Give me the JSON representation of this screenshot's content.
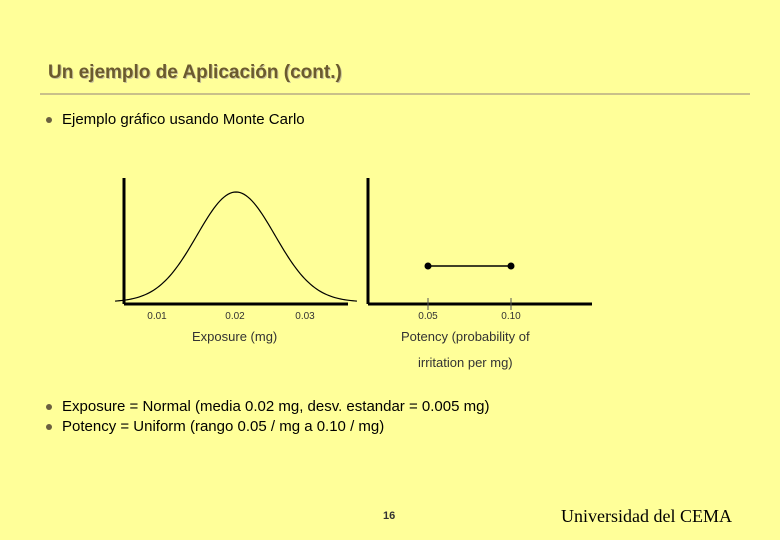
{
  "slide": {
    "title": "Un ejemplo de Aplicación (cont.)",
    "bullets_top": [
      "Ejemplo gráfico usando Monte Carlo"
    ],
    "bullets_bottom": [
      "Exposure = Normal (media 0.02 mg, desv. estandar = 0.005 mg)",
      "Potency = Uniform (rango 0.05 / mg a 0.10 / mg)"
    ],
    "page_number": "16",
    "organization": "Universidad del CEMA"
  },
  "exposure_plot": {
    "ticks": [
      "0.01",
      "0.02",
      "0.03"
    ],
    "xlabel": "Exposure (mg)",
    "distribution": "normal",
    "mean": 0.02,
    "sd": 0.005
  },
  "potency_plot": {
    "ticks": [
      "0.05",
      "0.10"
    ],
    "xlabel_line1": "Potency (probability of",
    "xlabel_line2": "irritation per mg)",
    "distribution": "uniform",
    "min": 0.05,
    "max": 0.1
  },
  "colors": {
    "background": "#ffff99",
    "title": "#6b5a2e",
    "axis": "#000000"
  }
}
